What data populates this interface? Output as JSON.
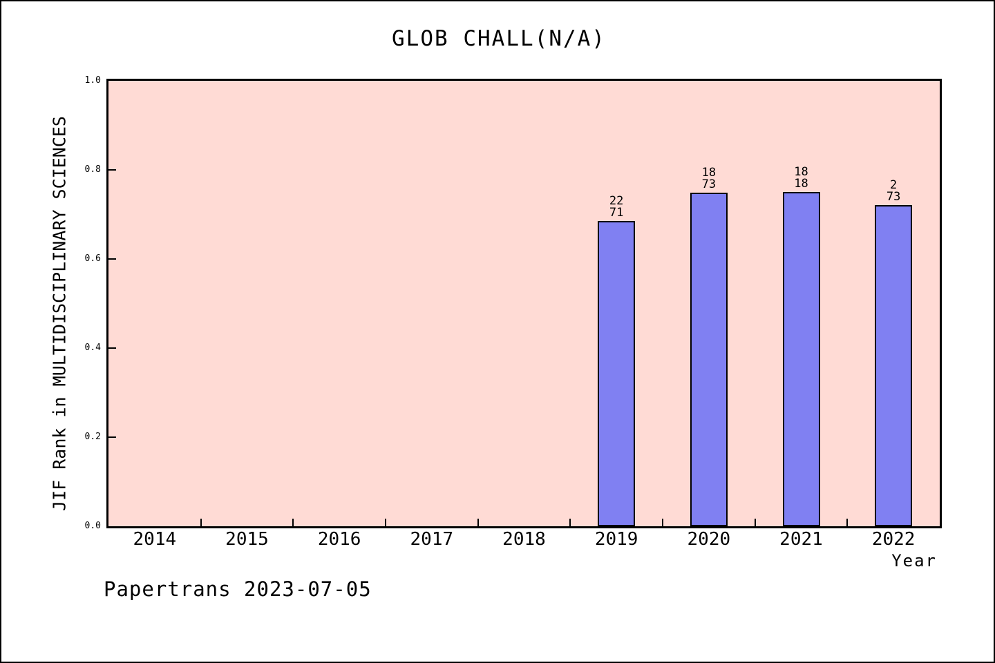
{
  "title": "GLOB CHALL(N/A)",
  "footer": "Papertrans 2023-07-05",
  "chart_data": {
    "type": "bar",
    "title": "GLOB CHALL(N/A)",
    "xlabel": "Year",
    "ylabel": "JIF Rank in MULTIDISCIPLINARY SCIENCES",
    "ylim": [
      0.0,
      1.0
    ],
    "yticks": [
      "0.0",
      "0.2",
      "0.4",
      "0.6",
      "0.8",
      "1.0"
    ],
    "categories": [
      "2014",
      "2015",
      "2016",
      "2017",
      "2018",
      "2019",
      "2020",
      "2021",
      "2022"
    ],
    "grid": "off",
    "legend": "none",
    "bars": [
      {
        "category": "2019",
        "value": 0.685,
        "label_top": "22",
        "label_bottom": "71"
      },
      {
        "category": "2020",
        "value": 0.749,
        "label_top": "18",
        "label_bottom": "73"
      },
      {
        "category": "2021",
        "value": 0.751,
        "label_top": "18",
        "label_bottom": "18"
      },
      {
        "category": "2022",
        "value": 0.721,
        "label_top": "2",
        "label_bottom": "73"
      }
    ],
    "colors": {
      "plot_background": "#ffdbd5",
      "bar_fill": "#8080f2",
      "bar_border": "#000000",
      "axis": "#000000",
      "text": "#000000"
    }
  }
}
